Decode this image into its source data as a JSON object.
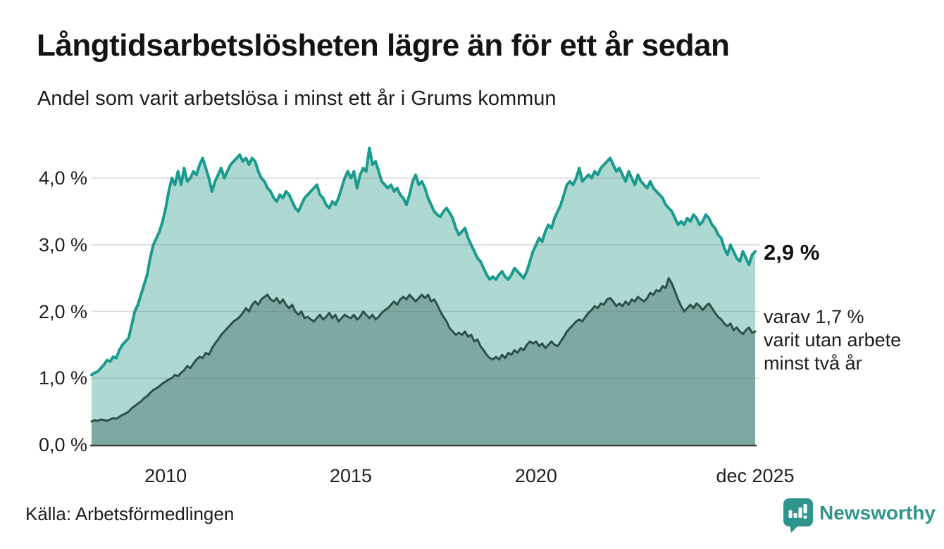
{
  "header": {
    "title": "Långtidsarbetslösheten lägre än för ett år sedan",
    "subtitle": "Andel som varit arbetslösa i minst ett år i Grums kommun"
  },
  "chart_data": {
    "type": "area",
    "title": "Långtidsarbetslösheten lägre än för ett år sedan",
    "subtitle": "Andel som varit arbetslösa i minst ett år i Grums kommun",
    "unit": "%",
    "x_range": {
      "start": "2008-01",
      "end": "2025-12",
      "frequency": "monthly"
    },
    "ylim": [
      0,
      4.65
    ],
    "grid": "horizontal",
    "colors": {
      "series1_line": "#1b9a8e",
      "series1_fill": "#aed9d2",
      "series2_line": "#2e4f4a",
      "series2_fill": "#7ea9a2",
      "gridline": "#d9d9d9",
      "baseline": "#3d3d3d"
    },
    "y_axis": {
      "ticks": [
        {
          "label": "0,0 %",
          "value": 0
        },
        {
          "label": "1,0 %",
          "value": 1
        },
        {
          "label": "2,0 %",
          "value": 2
        },
        {
          "label": "3,0 %",
          "value": 3
        },
        {
          "label": "4,0 %",
          "value": 4
        }
      ]
    },
    "x_axis": {
      "ticks": [
        {
          "label": "2010",
          "index": 24
        },
        {
          "label": "2015",
          "index": 84
        },
        {
          "label": "2020",
          "index": 144
        },
        {
          "label": "dec 2025",
          "index": 215
        }
      ]
    },
    "series": [
      {
        "name": "Andel som varit arbetslösa minst ett år",
        "line_color": "#1b9a8e",
        "fill_color": "#aed9d2",
        "end_value": 2.9,
        "values": [
          1.05,
          1.08,
          1.1,
          1.15,
          1.2,
          1.27,
          1.25,
          1.32,
          1.3,
          1.42,
          1.5,
          1.55,
          1.6,
          1.8,
          2.0,
          2.1,
          2.25,
          2.4,
          2.55,
          2.8,
          3.0,
          3.1,
          3.2,
          3.35,
          3.55,
          3.8,
          4.0,
          3.9,
          4.1,
          3.9,
          4.15,
          3.95,
          4.0,
          4.1,
          4.05,
          4.2,
          4.3,
          4.15,
          4.0,
          3.8,
          3.95,
          4.05,
          4.15,
          4.0,
          4.1,
          4.2,
          4.25,
          4.3,
          4.35,
          4.25,
          4.3,
          4.2,
          4.3,
          4.25,
          4.1,
          4.0,
          3.95,
          3.85,
          3.8,
          3.7,
          3.65,
          3.75,
          3.7,
          3.8,
          3.75,
          3.65,
          3.55,
          3.5,
          3.6,
          3.7,
          3.75,
          3.8,
          3.85,
          3.9,
          3.75,
          3.7,
          3.6,
          3.55,
          3.65,
          3.6,
          3.7,
          3.85,
          4.0,
          4.1,
          4.0,
          4.1,
          3.85,
          4.05,
          4.15,
          4.1,
          4.45,
          4.2,
          4.25,
          4.1,
          3.95,
          3.9,
          3.85,
          3.9,
          3.8,
          3.85,
          3.75,
          3.7,
          3.6,
          3.75,
          3.95,
          4.05,
          3.9,
          3.95,
          3.85,
          3.7,
          3.6,
          3.5,
          3.45,
          3.42,
          3.5,
          3.55,
          3.48,
          3.4,
          3.25,
          3.15,
          3.2,
          3.25,
          3.1,
          3.0,
          2.9,
          2.8,
          2.75,
          2.65,
          2.55,
          2.48,
          2.52,
          2.48,
          2.55,
          2.6,
          2.52,
          2.48,
          2.55,
          2.65,
          2.6,
          2.55,
          2.5,
          2.6,
          2.75,
          2.9,
          3.0,
          3.1,
          3.05,
          3.2,
          3.3,
          3.25,
          3.4,
          3.5,
          3.6,
          3.75,
          3.9,
          3.95,
          3.9,
          4.0,
          4.15,
          3.95,
          4.0,
          4.05,
          4.0,
          4.1,
          4.05,
          4.15,
          4.2,
          4.25,
          4.3,
          4.2,
          4.1,
          4.15,
          4.05,
          3.95,
          4.1,
          4.0,
          3.9,
          4.05,
          3.95,
          3.9,
          3.85,
          3.95,
          3.85,
          3.8,
          3.75,
          3.7,
          3.6,
          3.55,
          3.5,
          3.4,
          3.3,
          3.35,
          3.3,
          3.4,
          3.35,
          3.45,
          3.4,
          3.3,
          3.35,
          3.45,
          3.4,
          3.3,
          3.25,
          3.15,
          3.1,
          2.95,
          2.85,
          3.0,
          2.9,
          2.8,
          2.75,
          2.9,
          2.8,
          2.7,
          2.85,
          2.9
        ]
      },
      {
        "name": "varav arbetslösa minst två år",
        "line_color": "#2e4f4a",
        "fill_color": "#7ea9a2",
        "end_value": 1.7,
        "values": [
          0.35,
          0.37,
          0.36,
          0.38,
          0.37,
          0.36,
          0.38,
          0.4,
          0.39,
          0.42,
          0.45,
          0.47,
          0.5,
          0.55,
          0.58,
          0.62,
          0.65,
          0.7,
          0.73,
          0.78,
          0.82,
          0.85,
          0.88,
          0.92,
          0.95,
          0.98,
          1.0,
          1.05,
          1.03,
          1.08,
          1.12,
          1.18,
          1.15,
          1.22,
          1.28,
          1.32,
          1.3,
          1.38,
          1.35,
          1.45,
          1.52,
          1.58,
          1.65,
          1.7,
          1.75,
          1.8,
          1.85,
          1.88,
          1.92,
          1.98,
          2.05,
          2.0,
          2.1,
          2.15,
          2.1,
          2.18,
          2.22,
          2.25,
          2.18,
          2.15,
          2.2,
          2.12,
          2.18,
          2.1,
          2.05,
          2.1,
          2.0,
          1.95,
          2.0,
          1.9,
          1.92,
          1.88,
          1.85,
          1.9,
          1.95,
          1.88,
          1.92,
          1.98,
          1.9,
          1.95,
          1.85,
          1.9,
          1.95,
          1.92,
          1.9,
          1.95,
          1.88,
          1.92,
          2.0,
          1.95,
          1.9,
          1.95,
          1.88,
          1.92,
          1.98,
          2.02,
          2.05,
          2.1,
          2.15,
          2.1,
          2.18,
          2.22,
          2.18,
          2.25,
          2.2,
          2.15,
          2.2,
          2.25,
          2.2,
          2.25,
          2.15,
          2.18,
          2.1,
          2.0,
          1.92,
          1.85,
          1.75,
          1.7,
          1.65,
          1.68,
          1.65,
          1.7,
          1.62,
          1.65,
          1.55,
          1.58,
          1.48,
          1.42,
          1.35,
          1.3,
          1.28,
          1.32,
          1.28,
          1.35,
          1.3,
          1.38,
          1.35,
          1.42,
          1.38,
          1.45,
          1.42,
          1.5,
          1.55,
          1.52,
          1.55,
          1.48,
          1.52,
          1.45,
          1.5,
          1.55,
          1.5,
          1.48,
          1.55,
          1.62,
          1.7,
          1.75,
          1.8,
          1.85,
          1.88,
          1.85,
          1.92,
          1.98,
          2.02,
          2.08,
          2.05,
          2.12,
          2.1,
          2.18,
          2.2,
          2.15,
          2.08,
          2.12,
          2.08,
          2.15,
          2.1,
          2.18,
          2.15,
          2.22,
          2.18,
          2.15,
          2.2,
          2.28,
          2.25,
          2.32,
          2.3,
          2.38,
          2.35,
          2.5,
          2.42,
          2.3,
          2.18,
          2.08,
          2.0,
          2.05,
          2.1,
          2.05,
          2.12,
          2.08,
          2.02,
          2.08,
          2.12,
          2.05,
          1.98,
          1.92,
          1.88,
          1.82,
          1.78,
          1.82,
          1.72,
          1.76,
          1.7,
          1.66,
          1.72,
          1.76,
          1.68,
          1.7
        ]
      }
    ],
    "annotations": [
      {
        "text": "2,9 %",
        "bold": true
      },
      {
        "text_lines": [
          "varav 1,7 %",
          "varit utan arbete",
          "minst två år"
        ]
      }
    ]
  },
  "footer": {
    "source": "Källa: Arbetsförmedlingen",
    "brand": "Newsworthy",
    "brand_color": "#2f958c"
  }
}
